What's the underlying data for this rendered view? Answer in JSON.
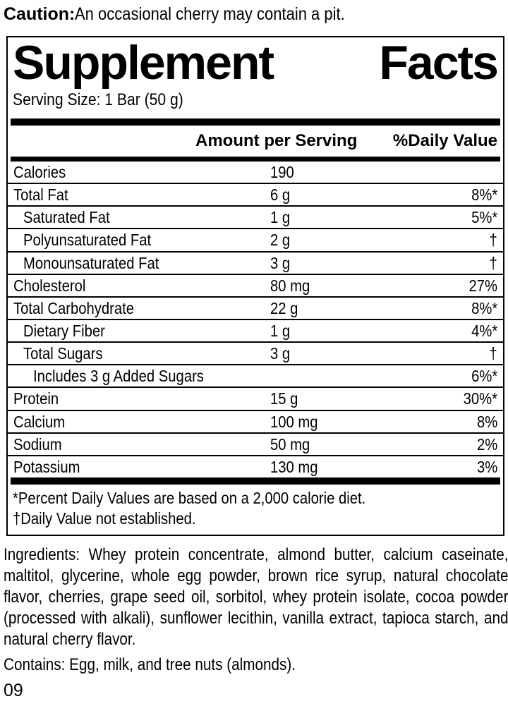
{
  "caution": {
    "label": "Caution:",
    "text": " An occasional cherry may contain a pit."
  },
  "panel": {
    "title": "Supplement Facts",
    "title_words": [
      "Supplement",
      "Facts"
    ],
    "serving_size": "Serving Size: 1 Bar (50 g)",
    "columns": {
      "amount": "Amount per Serving",
      "daily_value": "%Daily Value"
    },
    "rows": [
      {
        "label": "Calories",
        "amount": "190",
        "dv": "",
        "indent": 0
      },
      {
        "label": "Total Fat",
        "amount": "6 g",
        "dv": "8%*",
        "indent": 0
      },
      {
        "label": "Saturated Fat",
        "amount": "1 g",
        "dv": "5%*",
        "indent": 1
      },
      {
        "label": "Polyunsaturated Fat",
        "amount": "2 g",
        "dv": "†",
        "indent": 1
      },
      {
        "label": "Monounsaturated Fat",
        "amount": "3 g",
        "dv": "†",
        "indent": 1
      },
      {
        "label": "Cholesterol",
        "amount": "80 mg",
        "dv": "27%",
        "indent": 0
      },
      {
        "label": "Total Carbohydrate",
        "amount": "22 g",
        "dv": "8%*",
        "indent": 0
      },
      {
        "label": "Dietary Fiber",
        "amount": "1 g",
        "dv": "4%*",
        "indent": 1
      },
      {
        "label": "Total Sugars",
        "amount": "3 g",
        "dv": "†",
        "indent": 1
      },
      {
        "label": "Includes 3 g Added Sugars",
        "amount": "",
        "dv": "6%*",
        "indent": 2
      },
      {
        "label": "Protein",
        "amount": "15 g",
        "dv": "30%*",
        "indent": 0
      },
      {
        "label": "Calcium",
        "amount": "100 mg",
        "dv": "8%",
        "indent": 0
      },
      {
        "label": "Sodium",
        "amount": "50 mg",
        "dv": "2%",
        "indent": 0
      },
      {
        "label": "Potassium",
        "amount": "130 mg",
        "dv": "3%",
        "indent": 0
      }
    ],
    "footnotes": [
      "*Percent Daily Values are based on a 2,000 calorie diet.",
      "†Daily Value not established."
    ]
  },
  "ingredients": "Ingredients: Whey protein concentrate, almond butter, calcium caseinate, maltitol, glycerine, whole egg powder, brown rice syrup, natural chocolate flavor, cherries, grape seed oil, sorbitol, whey protein isolate, cocoa powder (processed with alkali), sunflower lecithin, vanilla extract, tapioca starch, and natural cherry flavor.",
  "contains": "Contains: Egg, milk, and tree nuts (almonds).",
  "page_number": "09",
  "colors": {
    "text": "#000000",
    "background": "#ffffff"
  }
}
